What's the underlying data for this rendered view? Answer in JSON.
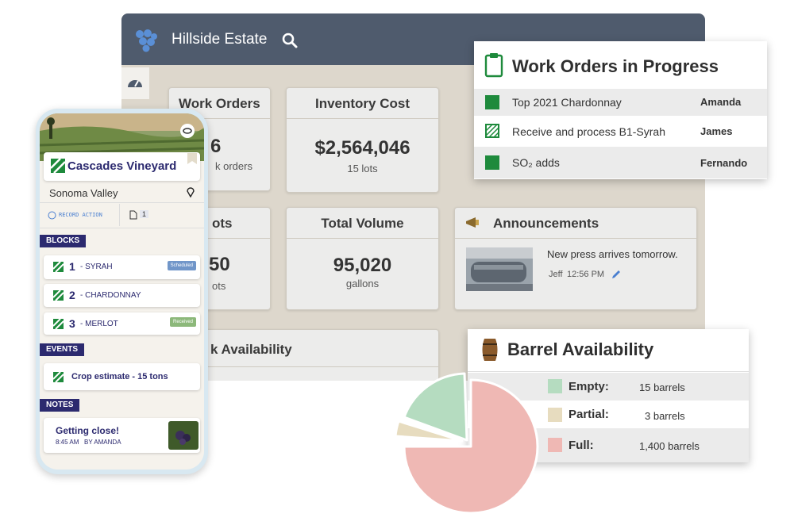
{
  "header": {
    "title": "Hillside Estate"
  },
  "cards": {
    "work_orders": {
      "title": "Work Orders",
      "value": "6",
      "sub": "k orders"
    },
    "inventory_cost": {
      "title": "Inventory Cost",
      "value": "$2,564,046",
      "sub": "15 lots"
    },
    "lots": {
      "title": "ots",
      "value": "50",
      "sub": "ots"
    },
    "total_volume": {
      "title": "Total Volume",
      "value": "95,020",
      "sub": "gallons"
    },
    "announcements": {
      "title": "Announcements",
      "message": "New press arrives tomorrow.",
      "author": "Jeff",
      "time": "12:56 PM"
    },
    "barrel_card": {
      "title": "k Availability"
    }
  },
  "work_orders_popup": {
    "title": "Work Orders in Progress",
    "rows": [
      {
        "task": "Top 2021 Chardonnay",
        "assignee": "Amanda"
      },
      {
        "task": "Receive and process B1-Syrah",
        "assignee": "James"
      },
      {
        "task": "SO₂ adds",
        "assignee": "Fernando"
      }
    ]
  },
  "barrel_popup": {
    "title": "Barrel Availability",
    "rows": [
      {
        "label": "Empty:",
        "value": "15 barrels"
      },
      {
        "label": "Partial:",
        "value": "3 barrels"
      },
      {
        "label": "Full:",
        "value": "1,400 barrels"
      }
    ]
  },
  "phone": {
    "title": "Cascades Vineyard",
    "location": "Sonoma Valley",
    "action": "RECORD ACTION",
    "doc_count": "1",
    "blocks": {
      "label": "BLOCKS",
      "items": [
        {
          "number": "1",
          "name": "- SYRAH",
          "status": "Scheduled"
        },
        {
          "number": "2",
          "name": "- CHARDONNAY"
        },
        {
          "number": "3",
          "name": "- MERLOT",
          "status": "Received"
        }
      ]
    },
    "events": {
      "label": "EVENTS",
      "items": [
        "Crop estimate - 15 tons"
      ]
    },
    "notes": {
      "label": "NOTES",
      "note": {
        "title": "Getting close!",
        "time": "8:45 AM",
        "author": "BY AMANDA"
      }
    }
  }
}
